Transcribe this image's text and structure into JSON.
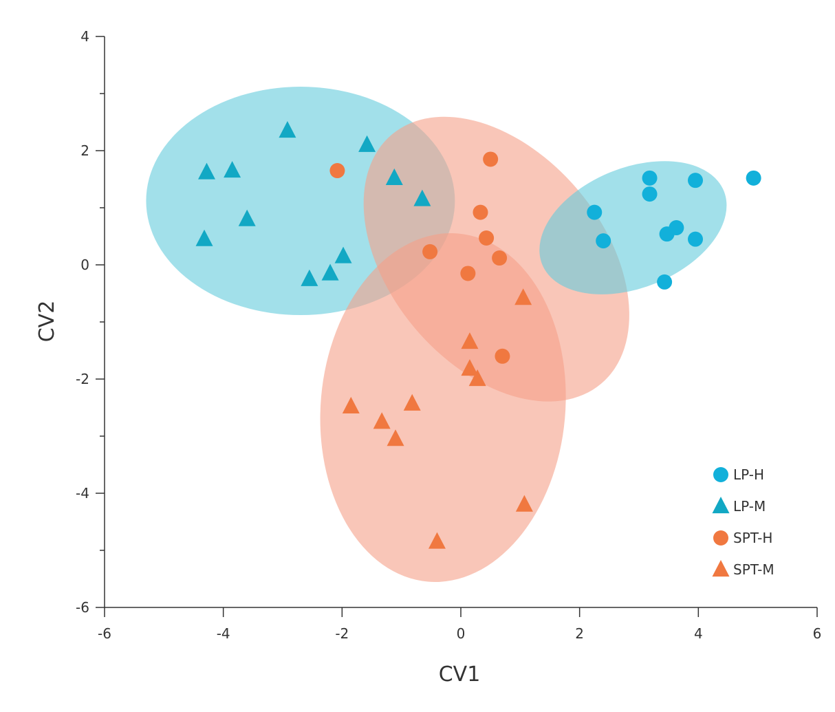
{
  "chart_data": {
    "type": "scatter",
    "title": "",
    "xlabel": "CV1",
    "ylabel": "CV2",
    "xlim": [
      -6,
      6
    ],
    "ylim": [
      -6,
      4
    ],
    "x_ticks": [
      -6,
      -4,
      -2,
      0,
      2,
      4,
      6
    ],
    "y_ticks": [
      -6,
      -4,
      -2,
      0,
      2,
      4
    ],
    "grid": false,
    "legend_position": "bottom-right",
    "colors": {
      "LP": "#12B0DA",
      "SPT": "#F07840",
      "LP_ellipse": "#64CCDC",
      "SPT_ellipse": "#F5A088"
    },
    "series": [
      {
        "name": "LP-H",
        "marker": "circle",
        "color": "#12B0DA",
        "points": [
          [
            2.25,
            0.92
          ],
          [
            2.4,
            0.42
          ],
          [
            3.18,
            1.52
          ],
          [
            3.18,
            1.24
          ],
          [
            3.95,
            1.48
          ],
          [
            4.93,
            1.52
          ],
          [
            3.47,
            0.54
          ],
          [
            3.63,
            0.65
          ],
          [
            3.95,
            0.45
          ],
          [
            3.43,
            -0.3
          ]
        ]
      },
      {
        "name": "LP-M",
        "marker": "triangle",
        "color": "#12A8C4",
        "points": [
          [
            -2.92,
            2.35
          ],
          [
            -1.58,
            2.1
          ],
          [
            -4.28,
            1.62
          ],
          [
            -3.85,
            1.65
          ],
          [
            -1.12,
            1.52
          ],
          [
            -0.65,
            1.15
          ],
          [
            -3.6,
            0.8
          ],
          [
            -4.32,
            0.45
          ],
          [
            -1.98,
            0.15
          ],
          [
            -2.55,
            -0.25
          ],
          [
            -2.2,
            -0.15
          ]
        ]
      },
      {
        "name": "SPT-H",
        "marker": "circle",
        "color": "#F07840",
        "points": [
          [
            -2.08,
            1.65
          ],
          [
            0.5,
            1.85
          ],
          [
            0.33,
            0.92
          ],
          [
            0.43,
            0.47
          ],
          [
            -0.52,
            0.23
          ],
          [
            0.65,
            0.12
          ],
          [
            0.12,
            -0.15
          ],
          [
            0.7,
            -1.6
          ]
        ]
      },
      {
        "name": "SPT-M",
        "marker": "triangle",
        "color": "#F07840",
        "points": [
          [
            1.05,
            -0.58
          ],
          [
            0.15,
            -1.35
          ],
          [
            0.15,
            -1.82
          ],
          [
            0.28,
            -2.0
          ],
          [
            -1.85,
            -2.48
          ],
          [
            -0.82,
            -2.43
          ],
          [
            -1.33,
            -2.75
          ],
          [
            -1.1,
            -3.05
          ],
          [
            1.07,
            -4.2
          ],
          [
            -0.4,
            -4.85
          ]
        ]
      }
    ],
    "ellipses": [
      {
        "group": "LP-M",
        "cx": -2.7,
        "cy": 1.12,
        "rx": 2.6,
        "ry": 2.0,
        "angle": 0,
        "color": "#64CCDC"
      },
      {
        "group": "SPT-H",
        "cx": 0.6,
        "cy": 0.1,
        "rx": 1.8,
        "ry": 2.85,
        "angle": 40,
        "color": "#F5A088"
      },
      {
        "group": "SPT-M",
        "cx": -0.3,
        "cy": -2.5,
        "rx": 2.06,
        "ry": 3.06,
        "angle": -5,
        "color": "#F5A088"
      },
      {
        "group": "LP-H",
        "cx": 2.9,
        "cy": 0.65,
        "rx": 1.65,
        "ry": 1.05,
        "angle": 22,
        "color": "#64CCDC"
      }
    ],
    "legend": [
      "LP-H",
      "LP-M",
      "SPT-H",
      "SPT-M"
    ]
  }
}
